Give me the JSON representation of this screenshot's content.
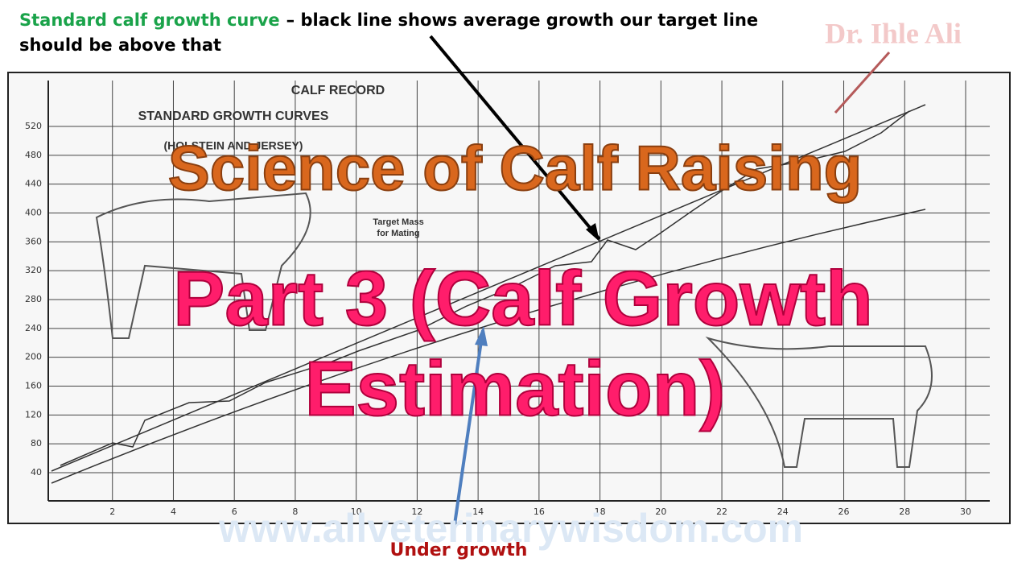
{
  "header": {
    "lead": "Standard calf growth curve",
    "rest": "– black line shows average growth our target line",
    "rest2": "should be above that",
    "watermark": "Dr. Ihle Ali"
  },
  "scan": {
    "record": "CALF RECORD",
    "subtitle": "STANDARD GROWTH CURVES",
    "breeds": "(HOLSTEIN AND JERSEY)",
    "target": "Target Mass",
    "target2": "for Mating",
    "yticks": [
      40,
      80,
      120,
      160,
      200,
      240,
      280,
      320,
      360,
      400,
      440,
      480,
      520
    ],
    "xticks": [
      2,
      4,
      6,
      8,
      10,
      12,
      14,
      16,
      18,
      20,
      22,
      24,
      26,
      28,
      30
    ]
  },
  "overlay": {
    "title": "Science of Calf Raising",
    "part": "Part 3 (Calf Growth",
    "part2": "Estimation)",
    "site": "www.allveterinarywisdom.com",
    "note": "Under growth"
  }
}
